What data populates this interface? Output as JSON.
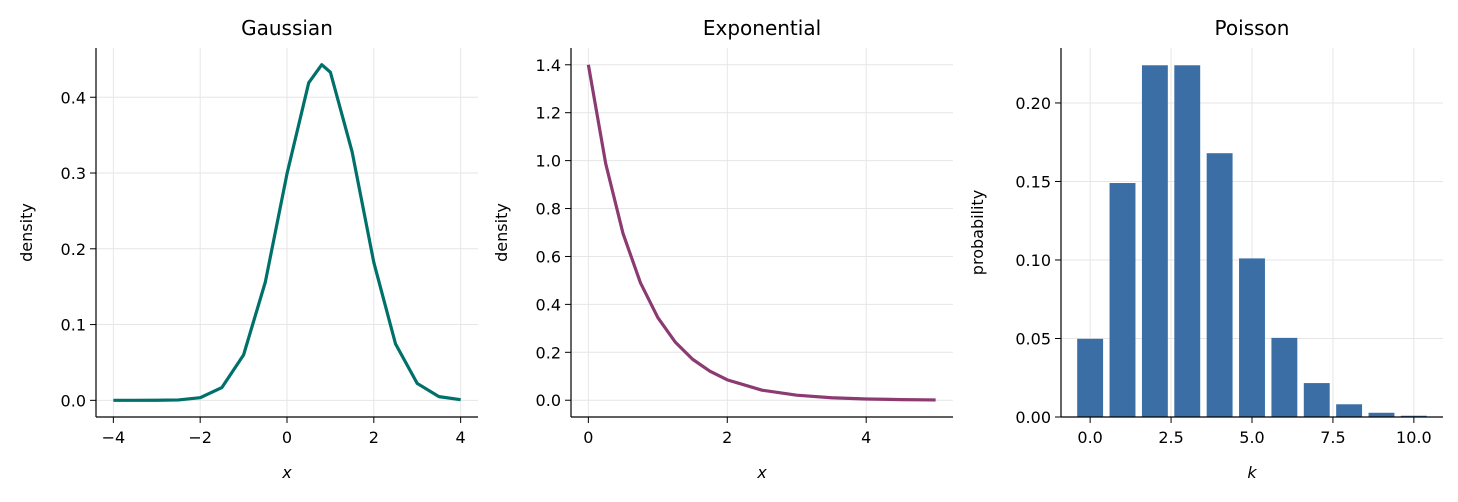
{
  "chart_data": [
    {
      "type": "line",
      "title": "Gaussian",
      "xlabel": "x",
      "ylabel": "density",
      "color": "#00706b",
      "grid": true,
      "x": [
        -4,
        -3.5,
        -3,
        -2.5,
        -2,
        -1.5,
        -1,
        -0.5,
        0,
        0.5,
        0.8,
        1,
        1.5,
        2,
        2.5,
        3,
        3.5,
        4
      ],
      "values": [
        0,
        0,
        0.0001,
        0.0005,
        0.0035,
        0.0169,
        0.06,
        0.156,
        0.299,
        0.419,
        0.443,
        0.433,
        0.328,
        0.182,
        0.0745,
        0.0223,
        0.0049,
        0.0008
      ],
      "xlim": [
        -4.4,
        4.4
      ],
      "xticks": [
        {
          "value": -4,
          "label": "−4"
        },
        {
          "value": -2,
          "label": "−2"
        },
        0,
        2,
        4
      ],
      "ylim": [
        -0.022,
        0.465
      ],
      "yticks": [
        {
          "value": 0,
          "label": "0.0"
        },
        0.1,
        0.2,
        0.3,
        0.4
      ]
    },
    {
      "type": "line",
      "title": "Exponential",
      "xlabel": "x",
      "ylabel": "density",
      "color": "#8b3a72",
      "grid": true,
      "x": [
        0,
        0.25,
        0.5,
        0.75,
        1,
        1.25,
        1.5,
        1.75,
        2,
        2.5,
        3,
        3.5,
        4,
        4.5,
        5
      ],
      "values": [
        1.4,
        0.987,
        0.695,
        0.49,
        0.345,
        0.243,
        0.171,
        0.121,
        0.085,
        0.042,
        0.021,
        0.0104,
        0.0052,
        0.0026,
        0.0013
      ],
      "xlim": [
        -0.25,
        5.25
      ],
      "xticks": [
        0,
        2,
        4
      ],
      "ylim": [
        -0.07,
        1.47
      ],
      "yticks": [
        {
          "value": 0,
          "label": "0.0"
        },
        0.2,
        0.4,
        0.6,
        0.8,
        {
          "value": 1,
          "label": "1.0"
        },
        1.2,
        1.4
      ]
    },
    {
      "type": "bar",
      "title": "Poisson",
      "xlabel": "k",
      "ylabel": "probability",
      "color": "#3a6ea5",
      "grid": true,
      "x": [
        0,
        1,
        2,
        3,
        4,
        5,
        6,
        7,
        8,
        9,
        10
      ],
      "values": [
        0.0498,
        0.149,
        0.224,
        0.224,
        0.168,
        0.101,
        0.0504,
        0.0216,
        0.0081,
        0.0027,
        0.0008
      ],
      "xlim": [
        -0.9,
        10.9
      ],
      "xticks": [
        {
          "value": 0,
          "label": "0.0"
        },
        2.5,
        {
          "value": 5,
          "label": "5.0"
        },
        7.5,
        {
          "value": 10,
          "label": "10.0"
        }
      ],
      "ylim": [
        0,
        0.235
      ],
      "yticks": [
        {
          "value": 0,
          "label": "0.00"
        },
        0.05,
        {
          "value": 0.1,
          "label": "0.10"
        },
        0.15,
        {
          "value": 0.2,
          "label": "0.20"
        }
      ]
    }
  ]
}
